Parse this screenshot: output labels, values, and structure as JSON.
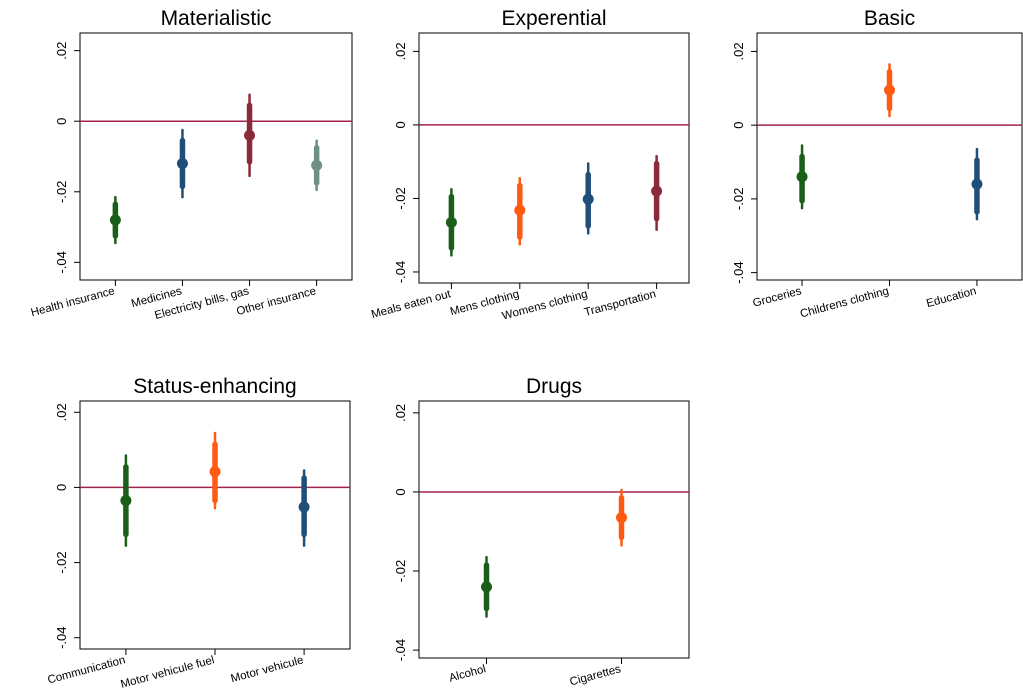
{
  "colors": {
    "zero_line": "#a3234f",
    "green": "#1a5e1a",
    "navy": "#1f4e79",
    "maroon": "#8b2a3a",
    "slate": "#6e8f85",
    "orange": "#ff5a12"
  },
  "chart_data": [
    {
      "type": "scatter",
      "title": "Materialistic",
      "ylim": [
        -0.045,
        0.025
      ],
      "yticks": [
        0.02,
        0,
        -0.02,
        -0.04
      ],
      "ytick_labels": [
        ".02",
        "0",
        "-.02",
        "-.04"
      ],
      "reference_line": 0,
      "categories": [
        "Health insurance",
        "Medicines",
        "Electricity bills, gas",
        "Other insurance"
      ],
      "estimates": [
        -0.028,
        -0.012,
        -0.004,
        -0.0125
      ],
      "ci_inner": [
        [
          -0.0325,
          -0.0235
        ],
        [
          -0.0185,
          -0.0055
        ],
        [
          -0.0115,
          0.0045
        ],
        [
          -0.0175,
          -0.0075
        ]
      ],
      "ci_outer": [
        [
          -0.0345,
          -0.0215
        ],
        [
          -0.0215,
          -0.0025
        ],
        [
          -0.0155,
          0.0075
        ],
        [
          -0.0195,
          -0.0055
        ]
      ],
      "point_colors": [
        "green",
        "navy",
        "maroon",
        "slate"
      ]
    },
    {
      "type": "scatter",
      "title": "Experential",
      "ylim": [
        -0.043,
        0.025
      ],
      "yticks": [
        0.02,
        0,
        -0.02,
        -0.04
      ],
      "ytick_labels": [
        ".02",
        "0",
        "-.02",
        "-.04"
      ],
      "reference_line": 0,
      "categories": [
        "Meals eaten out",
        "Mens clothing",
        "Womens clothing",
        "Transportation"
      ],
      "estimates": [
        -0.0265,
        -0.0232,
        -0.0202,
        -0.018
      ],
      "ci_inner": [
        [
          -0.0335,
          -0.0195
        ],
        [
          -0.0305,
          -0.0165
        ],
        [
          -0.0275,
          -0.0135
        ],
        [
          -0.0255,
          -0.0105
        ]
      ],
      "ci_outer": [
        [
          -0.0355,
          -0.0175
        ],
        [
          -0.0325,
          -0.0145
        ],
        [
          -0.0295,
          -0.0105
        ],
        [
          -0.0285,
          -0.0085
        ]
      ],
      "point_colors": [
        "green",
        "orange",
        "navy",
        "maroon"
      ]
    },
    {
      "type": "scatter",
      "title": "Basic",
      "ylim": [
        -0.042,
        0.025
      ],
      "yticks": [
        0.02,
        0,
        -0.02,
        -0.04
      ],
      "ytick_labels": [
        ".02",
        "0",
        "-.02",
        "-.04"
      ],
      "reference_line": 0,
      "categories": [
        "Groceries",
        "Childrens clothing",
        "Education"
      ],
      "estimates": [
        -0.014,
        0.0095,
        -0.016
      ],
      "ci_inner": [
        [
          -0.0205,
          -0.0085
        ],
        [
          0.0045,
          0.0145
        ],
        [
          -0.0235,
          -0.0095
        ]
      ],
      "ci_outer": [
        [
          -0.0225,
          -0.0055
        ],
        [
          0.0025,
          0.0165
        ],
        [
          -0.0255,
          -0.0065
        ]
      ],
      "point_colors": [
        "green",
        "orange",
        "navy"
      ]
    },
    {
      "type": "scatter",
      "title": "Status-enhancing",
      "ylim": [
        -0.043,
        0.023
      ],
      "yticks": [
        0.02,
        0,
        -0.02,
        -0.04
      ],
      "ytick_labels": [
        ".02",
        "0",
        "-.02",
        "-.04"
      ],
      "reference_line": 0,
      "categories": [
        "Communication",
        "Motor vehicule fuel",
        "Motor vehicule"
      ],
      "estimates": [
        -0.0035,
        0.0042,
        -0.0052
      ],
      "ci_inner": [
        [
          -0.0125,
          0.0055
        ],
        [
          -0.0035,
          0.0115
        ],
        [
          -0.0125,
          0.0025
        ]
      ],
      "ci_outer": [
        [
          -0.0155,
          0.0085
        ],
        [
          -0.0055,
          0.0145
        ],
        [
          -0.0155,
          0.0045
        ]
      ],
      "point_colors": [
        "green",
        "orange",
        "navy"
      ]
    },
    {
      "type": "scatter",
      "title": "Drugs",
      "ylim": [
        -0.042,
        0.023
      ],
      "yticks": [
        0.02,
        0,
        -0.02,
        -0.04
      ],
      "ytick_labels": [
        ".02",
        "0",
        "-.02",
        "-.04"
      ],
      "reference_line": 0,
      "categories": [
        "Alcohol",
        "Cigarettes"
      ],
      "estimates": [
        -0.024,
        -0.0065
      ],
      "ci_inner": [
        [
          -0.0295,
          -0.0185
        ],
        [
          -0.0115,
          -0.0015
        ]
      ],
      "ci_outer": [
        [
          -0.0315,
          -0.0165
        ],
        [
          -0.0135,
          0.0005
        ]
      ],
      "point_colors": [
        "green",
        "orange"
      ]
    }
  ]
}
